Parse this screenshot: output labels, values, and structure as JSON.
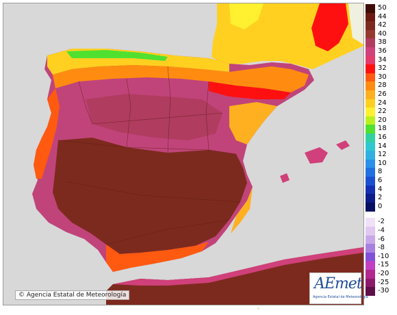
{
  "map": {
    "type": "temperature-raster",
    "sea_color": "#d8d8d8",
    "region_label_hidden": ""
  },
  "legend": {
    "bands": [
      {
        "label": "50",
        "color": "#3d0d05"
      },
      {
        "label": "44",
        "color": "#6a1a10"
      },
      {
        "label": "42",
        "color": "#7d2a1e"
      },
      {
        "label": "40",
        "color": "#963a30"
      },
      {
        "label": "38",
        "color": "#b03c60"
      },
      {
        "label": "36",
        "color": "#d0407a"
      },
      {
        "label": "34",
        "color": "#e33a6b"
      },
      {
        "label": "32",
        "color": "#ff1010"
      },
      {
        "label": "30",
        "color": "#ff5a10"
      },
      {
        "label": "28",
        "color": "#ff8c10"
      },
      {
        "label": "26",
        "color": "#ffb020"
      },
      {
        "label": "24",
        "color": "#ffd020"
      },
      {
        "label": "22",
        "color": "#fff030"
      },
      {
        "label": "20",
        "color": "#b8f020"
      },
      {
        "label": "18",
        "color": "#50e030"
      },
      {
        "label": "16",
        "color": "#30d0a0"
      },
      {
        "label": "14",
        "color": "#30c8d0"
      },
      {
        "label": "12",
        "color": "#30b0e0"
      },
      {
        "label": "10",
        "color": "#2a90e8"
      },
      {
        "label": "8",
        "color": "#2070e0"
      },
      {
        "label": "6",
        "color": "#1a50d0"
      },
      {
        "label": "4",
        "color": "#1430b0"
      },
      {
        "label": "2",
        "color": "#0c1c88"
      },
      {
        "label": "0",
        "color": "#061060"
      },
      {
        "label": "-2",
        "color": "#f0e0f8"
      },
      {
        "label": "-4",
        "color": "#e0c8f0"
      },
      {
        "label": "-6",
        "color": "#c8a8e8"
      },
      {
        "label": "-8",
        "color": "#a880e0"
      },
      {
        "label": "-10",
        "color": "#8050d8"
      },
      {
        "label": "-15",
        "color": "#c040c0"
      },
      {
        "label": "-20",
        "color": "#b02890"
      },
      {
        "label": "-25",
        "color": "#8c1a6a"
      },
      {
        "label": "-30",
        "color": "#5e0f48"
      }
    ]
  },
  "footer": {
    "copyright": "© Agencia Estatal de Meteorología",
    "logo_mark": "AEmet",
    "logo_subtitle": "Agencia Estatal de Meteorología",
    "bottom_mark": "°"
  }
}
